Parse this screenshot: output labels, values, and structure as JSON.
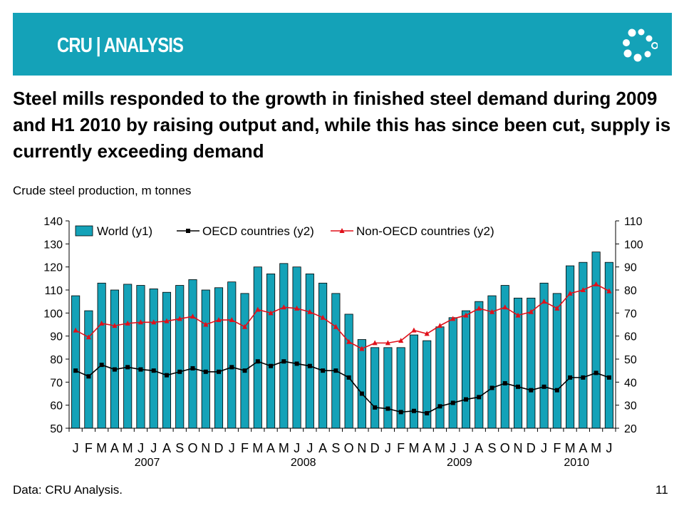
{
  "banner": {
    "logo_text": "CRU | ANALYSIS",
    "background": "#14a2b8"
  },
  "headline": "Steel mills responded to the growth in finished steel demand during 2009 and H1 2010 by raising output and, while this has since been cut, supply is currently exceeding demand",
  "subtitle": "Crude steel production, m tonnes",
  "footer": {
    "source": "Data: CRU Analysis.",
    "page_number": "11"
  },
  "chart_data": {
    "type": "bar",
    "categories": [
      "J",
      "F",
      "M",
      "A",
      "M",
      "J",
      "J",
      "A",
      "S",
      "O",
      "N",
      "D",
      "J",
      "F",
      "M",
      "A",
      "M",
      "J",
      "J",
      "A",
      "S",
      "O",
      "N",
      "D",
      "J",
      "F",
      "M",
      "A",
      "M",
      "J",
      "J",
      "A",
      "S",
      "O",
      "N",
      "D",
      "J",
      "F",
      "M",
      "A",
      "M",
      "J"
    ],
    "year_labels": [
      {
        "label": "2007",
        "start_index": 0,
        "end_index": 11
      },
      {
        "label": "2008",
        "start_index": 12,
        "end_index": 23
      },
      {
        "label": "2009",
        "start_index": 24,
        "end_index": 35
      },
      {
        "label": "2010",
        "start_index": 36,
        "end_index": 41
      }
    ],
    "y1_ticks": [
      50,
      60,
      70,
      80,
      90,
      100,
      110,
      120,
      130,
      140
    ],
    "y1lim": [
      50,
      140
    ],
    "y2_ticks": [
      20,
      30,
      40,
      50,
      60,
      70,
      80,
      90,
      100,
      110
    ],
    "y2lim": [
      20,
      110
    ],
    "legend_position": "top",
    "grid": false,
    "series": [
      {
        "name": "World (y1)",
        "type": "bar",
        "axis": "y1",
        "color": "#14a2b8",
        "values": [
          107.5,
          101,
          113,
          110,
          112.5,
          112,
          110.5,
          109,
          112,
          114.5,
          110,
          111,
          113.5,
          108.5,
          120,
          117,
          121.5,
          120,
          117,
          113,
          108.5,
          99.5,
          88.5,
          85,
          85,
          85,
          90.5,
          88,
          94,
          98,
          101,
          105,
          107.5,
          112,
          106.5,
          106.5,
          113,
          108.5,
          120.5,
          122,
          126.5,
          122
        ]
      },
      {
        "name": "OECD countries (y2)",
        "type": "line",
        "axis": "y2",
        "color": "#000000",
        "values": [
          45,
          42.5,
          47.5,
          45.5,
          46.5,
          45.5,
          45,
          43,
          44.5,
          46,
          44.5,
          44.5,
          46.5,
          45,
          49,
          47,
          49,
          48,
          47,
          45,
          45,
          42,
          35,
          29,
          28.5,
          27,
          27.5,
          26.5,
          29.5,
          31,
          32.5,
          33.5,
          37.5,
          39.5,
          38,
          36.5,
          38,
          36.5,
          42,
          42,
          44,
          42
        ]
      },
      {
        "name": "Non-OECD countries (y2)",
        "type": "line",
        "axis": "y2",
        "color": "#e0101a",
        "values": [
          62.5,
          59.5,
          65.5,
          64.5,
          65.5,
          66,
          66,
          66.5,
          67.5,
          68.5,
          65,
          67,
          67,
          64,
          71.5,
          70,
          72.5,
          72,
          70.5,
          68,
          64,
          57.5,
          54.5,
          57,
          57,
          58,
          62.5,
          61,
          64.5,
          67.5,
          69,
          72,
          70.5,
          72.5,
          69,
          70.5,
          75,
          72,
          78.5,
          80,
          82.5,
          79.5
        ]
      }
    ]
  }
}
